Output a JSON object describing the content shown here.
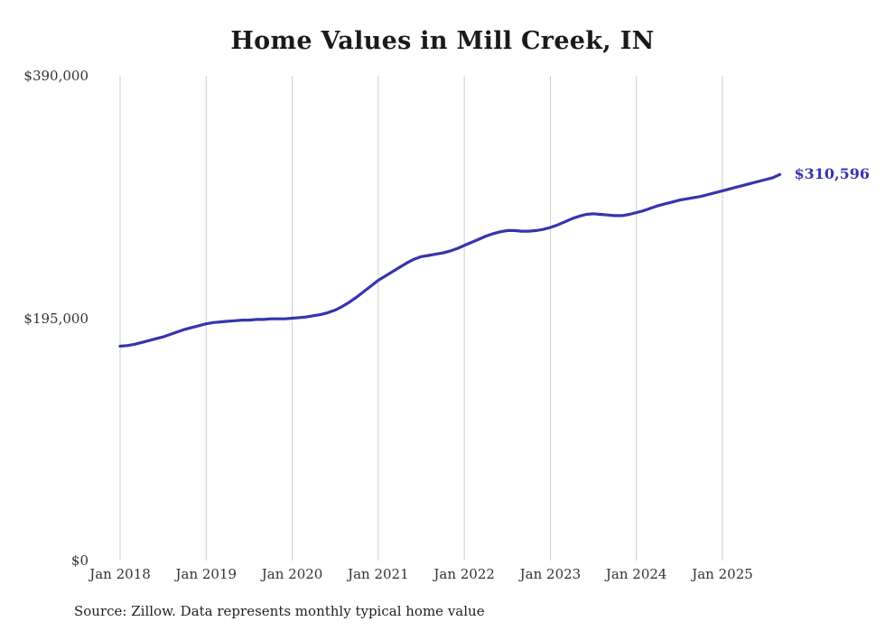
{
  "title": "Home Values in Mill Creek, IN",
  "source_note": "Source: Zillow. Data represents monthly typical home value",
  "chart_data": {
    "type": "line",
    "title": "Home Values in Mill Creek, IN",
    "xlabel": "",
    "ylabel": "",
    "ylim": [
      0,
      390000
    ],
    "grid": "vertical-only",
    "grid_color": "#cccccc",
    "line_color": "#3734ad",
    "end_label": "$310,596",
    "final_value": 310596,
    "frequency": "monthly",
    "x_start_month": "Jan 2018",
    "x_end_month": "Sep 2025",
    "y_ticks": [
      {
        "label": "$0",
        "value": 0
      },
      {
        "label": "$195,000",
        "value": 195000
      },
      {
        "label": "$390,000",
        "value": 390000
      }
    ],
    "x_ticks": [
      {
        "label": "Jan 2018",
        "month_index": 0
      },
      {
        "label": "Jan 2019",
        "month_index": 12
      },
      {
        "label": "Jan 2020",
        "month_index": 24
      },
      {
        "label": "Jan 2021",
        "month_index": 36
      },
      {
        "label": "Jan 2022",
        "month_index": 48
      },
      {
        "label": "Jan 2023",
        "month_index": 60
      },
      {
        "label": "Jan 2024",
        "month_index": 72
      },
      {
        "label": "Jan 2025",
        "month_index": 84
      }
    ],
    "series": [
      {
        "name": "Typical home value (USD)",
        "values": [
          172500,
          173000,
          174000,
          175500,
          177000,
          178500,
          180000,
          182000,
          184000,
          186000,
          187500,
          189000,
          190500,
          191500,
          192000,
          192500,
          193000,
          193500,
          193500,
          194000,
          194000,
          194500,
          194500,
          194500,
          195000,
          195500,
          196000,
          197000,
          198000,
          199500,
          201500,
          204500,
          208000,
          212000,
          216500,
          221000,
          225500,
          229000,
          232500,
          236000,
          239500,
          242500,
          244500,
          245500,
          246500,
          247500,
          249000,
          251000,
          253500,
          256000,
          258500,
          261000,
          263000,
          264500,
          265500,
          265500,
          265000,
          265000,
          265500,
          266500,
          268000,
          270000,
          272500,
          275000,
          277000,
          278500,
          279000,
          278500,
          278000,
          277500,
          277500,
          278500,
          280000,
          281500,
          283500,
          285500,
          287000,
          288500,
          290000,
          291000,
          292000,
          293000,
          294500,
          296000,
          297500,
          299000,
          300500,
          302000,
          303500,
          305000,
          306500,
          308000,
          310596
        ]
      }
    ]
  }
}
